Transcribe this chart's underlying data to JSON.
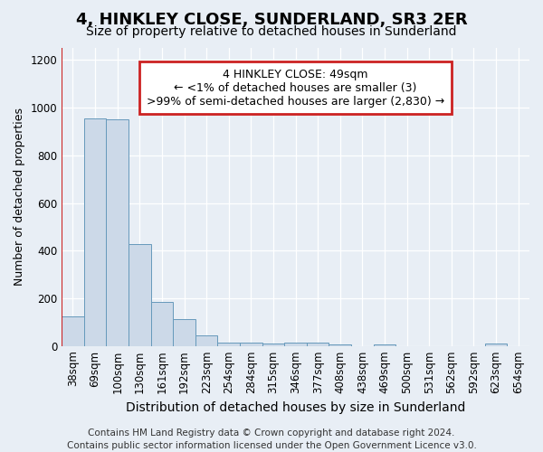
{
  "title": "4, HINKLEY CLOSE, SUNDERLAND, SR3 2ER",
  "subtitle": "Size of property relative to detached houses in Sunderland",
  "xlabel": "Distribution of detached houses by size in Sunderland",
  "ylabel": "Number of detached properties",
  "footer_line1": "Contains HM Land Registry data © Crown copyright and database right 2024.",
  "footer_line2": "Contains public sector information licensed under the Open Government Licence v3.0.",
  "categories": [
    "38sqm",
    "69sqm",
    "100sqm",
    "130sqm",
    "161sqm",
    "192sqm",
    "223sqm",
    "254sqm",
    "284sqm",
    "315sqm",
    "346sqm",
    "377sqm",
    "408sqm",
    "438sqm",
    "469sqm",
    "500sqm",
    "531sqm",
    "562sqm",
    "592sqm",
    "623sqm",
    "654sqm"
  ],
  "values": [
    125,
    955,
    950,
    428,
    185,
    115,
    47,
    18,
    15,
    12,
    15,
    18,
    10,
    0,
    8,
    0,
    0,
    0,
    0,
    12,
    0
  ],
  "bar_color": "#ccd9e8",
  "bar_edge_color": "#6699bb",
  "highlight_line_color": "#cc2222",
  "annotation_text": "4 HINKLEY CLOSE: 49sqm\n← <1% of detached houses are smaller (3)\n>99% of semi-detached houses are larger (2,830) →",
  "annotation_box_color": "#ffffff",
  "annotation_box_edge_color": "#cc2222",
  "ylim": [
    0,
    1250
  ],
  "yticks": [
    0,
    200,
    400,
    600,
    800,
    1000,
    1200
  ],
  "background_color": "#e8eef5",
  "grid_color": "#ffffff",
  "title_fontsize": 13,
  "subtitle_fontsize": 10,
  "xlabel_fontsize": 10,
  "ylabel_fontsize": 9,
  "tick_fontsize": 8.5,
  "annotation_fontsize": 9,
  "footer_fontsize": 7.5
}
